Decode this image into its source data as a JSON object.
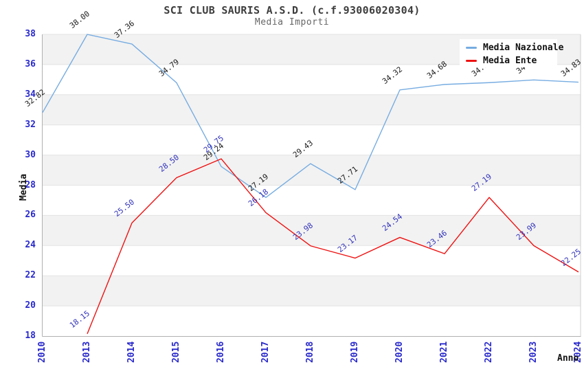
{
  "header": {
    "title": "SCI CLUB SAURIS A.S.D. (c.f.93006020304)",
    "subtitle": "Media Importi"
  },
  "chart_data": {
    "type": "line",
    "title": "SCI CLUB SAURIS A.S.D. (c.f.93006020304)",
    "subtitle": "Media Importi",
    "xlabel": "Anno",
    "ylabel": "Media",
    "ylim": [
      18,
      38
    ],
    "yticks": [
      18,
      20,
      22,
      24,
      26,
      28,
      30,
      32,
      34,
      36,
      38
    ],
    "categories": [
      "2010",
      "2013",
      "2014",
      "2015",
      "2016",
      "2017",
      "2018",
      "2019",
      "2020",
      "2021",
      "2022",
      "2023",
      "2024"
    ],
    "grid": "horizontal gridlines at every 2 units, alternating light-gray bands",
    "legend_position": "top-right",
    "series": [
      {
        "name": "Media Nazionale",
        "color": "#76ace1",
        "label_color": "#1a1a1a",
        "values": [
          32.82,
          38.0,
          37.36,
          34.79,
          29.24,
          27.19,
          29.43,
          27.71,
          34.32,
          34.68,
          34.8,
          34.98,
          34.83
        ]
      },
      {
        "name": "Media Ente",
        "color": "#ee1111",
        "label_color": "#3333bb",
        "values": [
          null,
          18.15,
          25.5,
          28.5,
          29.75,
          26.18,
          23.98,
          23.17,
          24.54,
          23.46,
          27.19,
          23.99,
          22.25
        ]
      }
    ]
  },
  "colors": {
    "band_gray": "#f2f2f2",
    "gridline": "#e3e3e3",
    "axis_line": "#b0b0b0",
    "plot_right_border": "#cfcfcf",
    "tick_text": "#2929cc",
    "title_text": "#3d3d3d",
    "subtitle_text": "#666666"
  }
}
